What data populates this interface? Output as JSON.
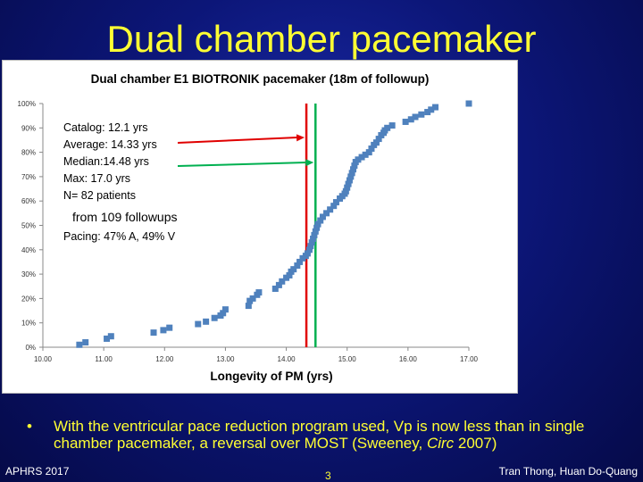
{
  "slide": {
    "title": "Dual chamber pacemaker",
    "bullet_marker": "•",
    "bullet": "With the ventricular pace reduction program used, Vp is now less than in single chamber pacemaker, a reversal over MOST (Sweeney, Circ 2007)",
    "bullet_parts": [
      "With the ventricular pace reduction program used, Vp is now less than in single chamber pacemaker, a reversal over MOST (Sweeney, ",
      "Circ",
      " 2007)"
    ],
    "footer_left": "APHRS 2017",
    "page_number": "3",
    "footer_right": "Tran Thong, Huan Do-Quang"
  },
  "chart_data": {
    "type": "scatter",
    "title": "Dual chamber E1 BIOTRONIK pacemaker (18m of  followup)",
    "xlabel": "Longevity of PM (yrs)",
    "ylabel": "",
    "xlim": [
      10.0,
      17.0
    ],
    "ylim": [
      0,
      100
    ],
    "xticks": [
      "10.00",
      "11.00",
      "12.00",
      "13.00",
      "14.00",
      "15.00",
      "16.00",
      "17.00"
    ],
    "yticks": [
      "0%",
      "10%",
      "20%",
      "30%",
      "40%",
      "50%",
      "60%",
      "70%",
      "80%",
      "90%",
      "100%"
    ],
    "grid": false,
    "marker_color": "#4f81bd",
    "annotations": [
      "Catalog: 12.1 yrs",
      "Average: 14.33 yrs",
      "Median:14.48 yrs",
      "Max: 17.0 yrs",
      "N= 82 patients",
      "from 109 followups",
      "Pacing: 47% A, 49% V"
    ],
    "vlines": [
      {
        "label": "Average",
        "x": 14.33,
        "color": "#e00000"
      },
      {
        "label": "Median",
        "x": 14.48,
        "color": "#00b050"
      }
    ],
    "points": [
      [
        10.6,
        1
      ],
      [
        10.7,
        2
      ],
      [
        11.05,
        3.5
      ],
      [
        11.12,
        4.5
      ],
      [
        11.82,
        6
      ],
      [
        11.98,
        7
      ],
      [
        12.08,
        8
      ],
      [
        12.55,
        9.5
      ],
      [
        12.68,
        10.5
      ],
      [
        12.82,
        12
      ],
      [
        12.92,
        13
      ],
      [
        12.96,
        14
      ],
      [
        13.0,
        15.5
      ],
      [
        13.38,
        17
      ],
      [
        13.4,
        19
      ],
      [
        13.45,
        20
      ],
      [
        13.52,
        21.5
      ],
      [
        13.55,
        22.5
      ],
      [
        13.82,
        24
      ],
      [
        13.88,
        25.5
      ],
      [
        13.93,
        27
      ],
      [
        14.0,
        28.5
      ],
      [
        14.05,
        29.5
      ],
      [
        14.08,
        31
      ],
      [
        14.12,
        32
      ],
      [
        14.18,
        33.5
      ],
      [
        14.22,
        35
      ],
      [
        14.27,
        36.5
      ],
      [
        14.32,
        37.5
      ],
      [
        14.35,
        38.5
      ],
      [
        14.38,
        40
      ],
      [
        14.4,
        41.5
      ],
      [
        14.42,
        43
      ],
      [
        14.44,
        44.5
      ],
      [
        14.46,
        46
      ],
      [
        14.48,
        47.5
      ],
      [
        14.5,
        49
      ],
      [
        14.52,
        50.5
      ],
      [
        14.56,
        52
      ],
      [
        14.6,
        53.5
      ],
      [
        14.66,
        55
      ],
      [
        14.72,
        56.5
      ],
      [
        14.78,
        58
      ],
      [
        14.82,
        59.5
      ],
      [
        14.88,
        61
      ],
      [
        14.92,
        62
      ],
      [
        14.96,
        63
      ],
      [
        14.98,
        64
      ],
      [
        15.0,
        65.5
      ],
      [
        15.02,
        67
      ],
      [
        15.04,
        68.5
      ],
      [
        15.06,
        70
      ],
      [
        15.08,
        71.5
      ],
      [
        15.1,
        73
      ],
      [
        15.12,
        74.5
      ],
      [
        15.14,
        76
      ],
      [
        15.18,
        77
      ],
      [
        15.24,
        78
      ],
      [
        15.3,
        79
      ],
      [
        15.36,
        80
      ],
      [
        15.4,
        81.5
      ],
      [
        15.44,
        83
      ],
      [
        15.48,
        84
      ],
      [
        15.52,
        85.5
      ],
      [
        15.56,
        87
      ],
      [
        15.6,
        88
      ],
      [
        15.62,
        89
      ],
      [
        15.66,
        90
      ],
      [
        15.74,
        91
      ],
      [
        15.96,
        92.5
      ],
      [
        16.05,
        93.5
      ],
      [
        16.12,
        94.5
      ],
      [
        16.22,
        95.5
      ],
      [
        16.32,
        96.5
      ],
      [
        16.38,
        97.5
      ],
      [
        16.45,
        98.5
      ],
      [
        17.0,
        100
      ]
    ]
  }
}
